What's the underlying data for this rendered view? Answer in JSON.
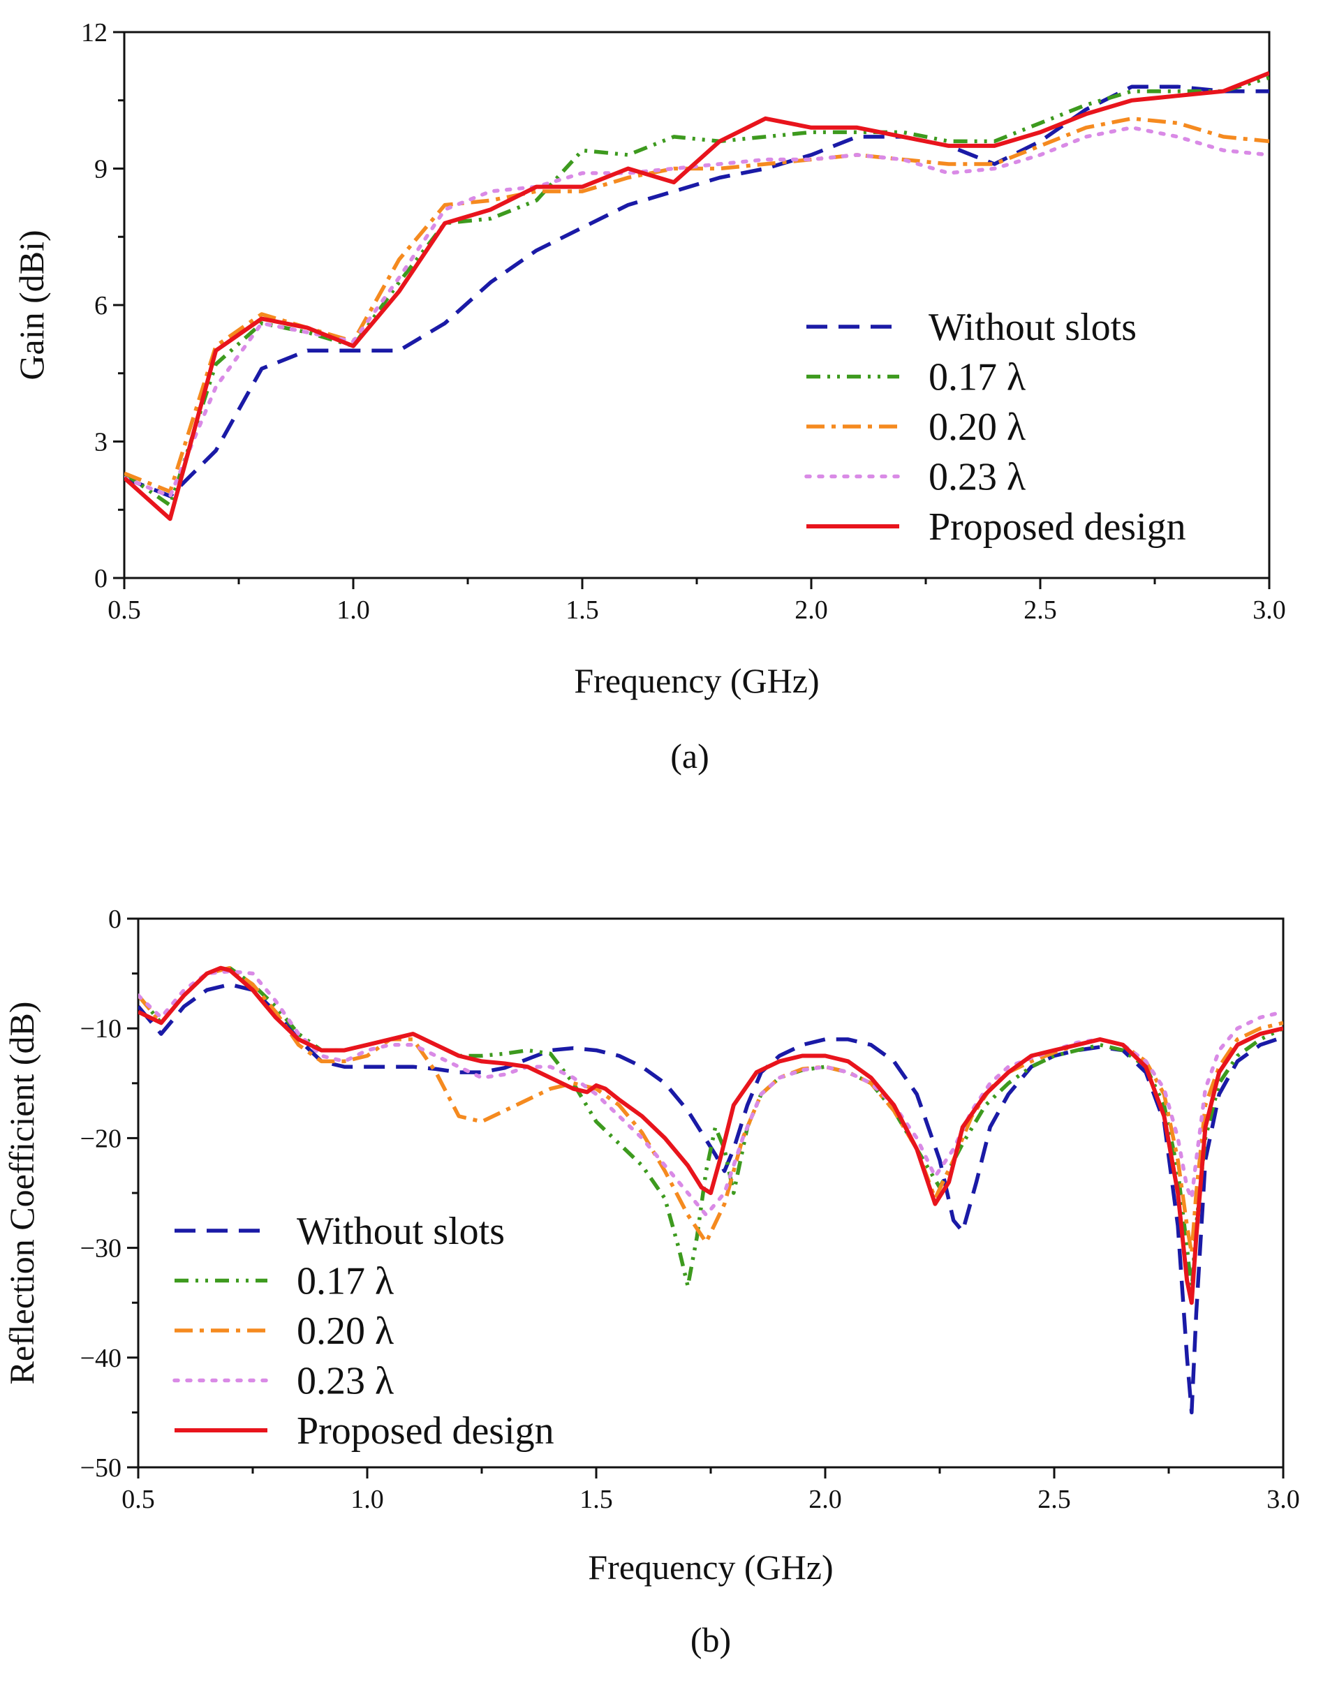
{
  "chart_data": [
    {
      "panel_label": "(a)",
      "type": "line",
      "title": "",
      "xlabel": "Frequency (GHz)",
      "ylabel": "Gain (dBi)",
      "xlim": [
        0.5,
        3.0
      ],
      "ylim": [
        0,
        12
      ],
      "xticks": [
        0.5,
        1.0,
        1.5,
        2.0,
        2.5,
        3.0
      ],
      "xtick_labels": [
        "0.5",
        "1.0",
        "1.5",
        "2.0",
        "2.5",
        "3.0"
      ],
      "yticks": [
        0,
        3,
        6,
        9,
        12
      ],
      "ytick_labels": [
        "0",
        "3",
        "6",
        "9",
        "12"
      ],
      "grid": false,
      "legend_position": "bottom-right",
      "series": [
        {
          "name": "Without slots",
          "color": "#1a1aa6",
          "style": "dashed",
          "x": [
            0.5,
            0.6,
            0.7,
            0.8,
            0.9,
            1.0,
            1.1,
            1.2,
            1.3,
            1.4,
            1.5,
            1.6,
            1.7,
            1.8,
            1.9,
            2.0,
            2.1,
            2.2,
            2.3,
            2.4,
            2.5,
            2.6,
            2.7,
            2.8,
            2.9,
            3.0
          ],
          "values": [
            2.2,
            1.8,
            2.8,
            4.6,
            5.0,
            5.0,
            5.0,
            5.6,
            6.5,
            7.2,
            7.7,
            8.2,
            8.5,
            8.8,
            9.0,
            9.3,
            9.7,
            9.7,
            9.5,
            9.1,
            9.6,
            10.3,
            10.8,
            10.8,
            10.7,
            10.7
          ]
        },
        {
          "name": "0.17 λ",
          "color": "#3d9a1e",
          "style": "dash-dot-dot",
          "x": [
            0.5,
            0.6,
            0.7,
            0.8,
            0.9,
            1.0,
            1.1,
            1.2,
            1.3,
            1.4,
            1.5,
            1.6,
            1.7,
            1.8,
            1.9,
            2.0,
            2.1,
            2.2,
            2.3,
            2.4,
            2.5,
            2.6,
            2.7,
            2.8,
            2.9,
            3.0
          ],
          "values": [
            2.3,
            1.6,
            4.7,
            5.6,
            5.4,
            5.1,
            6.5,
            7.8,
            7.9,
            8.3,
            9.4,
            9.3,
            9.7,
            9.6,
            9.7,
            9.8,
            9.8,
            9.8,
            9.6,
            9.6,
            10.0,
            10.4,
            10.7,
            10.7,
            10.7,
            11.0
          ]
        },
        {
          "name": "0.20 λ",
          "color": "#f58a1f",
          "style": "dash-dot",
          "x": [
            0.5,
            0.6,
            0.7,
            0.8,
            0.9,
            1.0,
            1.1,
            1.2,
            1.3,
            1.4,
            1.5,
            1.6,
            1.7,
            1.8,
            1.9,
            2.0,
            2.1,
            2.2,
            2.3,
            2.4,
            2.5,
            2.6,
            2.7,
            2.8,
            2.9,
            3.0
          ],
          "values": [
            2.3,
            1.9,
            5.1,
            5.8,
            5.5,
            5.2,
            7.0,
            8.2,
            8.3,
            8.5,
            8.5,
            8.8,
            9.0,
            9.0,
            9.1,
            9.2,
            9.3,
            9.2,
            9.1,
            9.1,
            9.5,
            9.9,
            10.1,
            10.0,
            9.7,
            9.6
          ]
        },
        {
          "name": "0.23 λ",
          "color": "#d98ae6",
          "style": "dotted",
          "x": [
            0.5,
            0.6,
            0.7,
            0.8,
            0.9,
            1.0,
            1.1,
            1.2,
            1.3,
            1.4,
            1.5,
            1.6,
            1.7,
            1.8,
            1.9,
            2.0,
            2.1,
            2.2,
            2.3,
            2.4,
            2.5,
            2.6,
            2.7,
            2.8,
            2.9,
            3.0
          ],
          "values": [
            2.2,
            1.8,
            4.2,
            5.6,
            5.4,
            5.2,
            6.6,
            8.1,
            8.5,
            8.6,
            8.9,
            8.9,
            9.0,
            9.1,
            9.2,
            9.2,
            9.3,
            9.2,
            8.9,
            9.0,
            9.3,
            9.7,
            9.9,
            9.7,
            9.4,
            9.3
          ]
        },
        {
          "name": "Proposed design",
          "color": "#e8141c",
          "style": "solid",
          "x": [
            0.5,
            0.6,
            0.7,
            0.8,
            0.9,
            1.0,
            1.1,
            1.2,
            1.3,
            1.4,
            1.5,
            1.6,
            1.7,
            1.8,
            1.9,
            2.0,
            2.1,
            2.2,
            2.3,
            2.4,
            2.5,
            2.6,
            2.7,
            2.8,
            2.9,
            3.0
          ],
          "values": [
            2.2,
            1.3,
            5.0,
            5.7,
            5.5,
            5.1,
            6.3,
            7.8,
            8.1,
            8.6,
            8.6,
            9.0,
            8.7,
            9.6,
            10.1,
            9.9,
            9.9,
            9.7,
            9.5,
            9.5,
            9.8,
            10.2,
            10.5,
            10.6,
            10.7,
            11.1
          ]
        }
      ]
    },
    {
      "panel_label": "(b)",
      "type": "line",
      "title": "",
      "xlabel": "Frequency (GHz)",
      "ylabel": "Reflection Coefficient (dB)",
      "xlim": [
        0.5,
        3.0
      ],
      "ylim": [
        -50,
        0
      ],
      "xticks": [
        0.5,
        1.0,
        1.5,
        2.0,
        2.5,
        3.0
      ],
      "xtick_labels": [
        "0.5",
        "1.0",
        "1.5",
        "2.0",
        "2.5",
        "3.0"
      ],
      "yticks": [
        0,
        -10,
        -20,
        -30,
        -40,
        -50
      ],
      "ytick_labels": [
        "0",
        "−10",
        "−20",
        "−30",
        "−40",
        "−50"
      ],
      "grid": false,
      "legend_position": "bottom-left",
      "series": [
        {
          "name": "Without slots",
          "color": "#1a1aa6",
          "style": "dashed",
          "x": [
            0.5,
            0.55,
            0.6,
            0.65,
            0.7,
            0.75,
            0.8,
            0.85,
            0.9,
            0.95,
            1.0,
            1.05,
            1.1,
            1.15,
            1.2,
            1.25,
            1.3,
            1.35,
            1.4,
            1.45,
            1.5,
            1.55,
            1.6,
            1.65,
            1.7,
            1.73,
            1.76,
            1.78,
            1.8,
            1.83,
            1.86,
            1.9,
            1.95,
            2.0,
            2.05,
            2.1,
            2.15,
            2.2,
            2.25,
            2.28,
            2.3,
            2.33,
            2.36,
            2.4,
            2.45,
            2.5,
            2.55,
            2.6,
            2.65,
            2.7,
            2.74,
            2.77,
            2.79,
            2.8,
            2.81,
            2.83,
            2.86,
            2.9,
            2.95,
            3.0
          ],
          "values": [
            -8.0,
            -10.5,
            -8.0,
            -6.5,
            -6.0,
            -6.5,
            -8.5,
            -11.0,
            -13.0,
            -13.5,
            -13.5,
            -13.5,
            -13.5,
            -13.7,
            -14.0,
            -14.0,
            -13.6,
            -12.8,
            -12.0,
            -11.8,
            -12.0,
            -12.5,
            -13.5,
            -15.0,
            -17.5,
            -19.5,
            -21.5,
            -23.0,
            -21.0,
            -17.0,
            -14.0,
            -12.5,
            -11.5,
            -11.0,
            -11.0,
            -11.5,
            -13.0,
            -16.0,
            -22.0,
            -27.5,
            -28.5,
            -24.0,
            -19.0,
            -16.0,
            -13.5,
            -12.5,
            -12.0,
            -11.7,
            -12.0,
            -14.0,
            -18.5,
            -28.0,
            -40.0,
            -45.0,
            -36.0,
            -22.0,
            -16.0,
            -13.0,
            -11.5,
            -10.8
          ]
        },
        {
          "name": "0.17 λ",
          "color": "#3d9a1e",
          "style": "dash-dot-dot",
          "x": [
            0.5,
            0.55,
            0.6,
            0.65,
            0.7,
            0.75,
            0.8,
            0.85,
            0.9,
            0.95,
            1.0,
            1.05,
            1.1,
            1.15,
            1.2,
            1.25,
            1.3,
            1.35,
            1.4,
            1.45,
            1.5,
            1.55,
            1.6,
            1.65,
            1.68,
            1.7,
            1.72,
            1.74,
            1.76,
            1.78,
            1.8,
            1.83,
            1.86,
            1.9,
            1.95,
            2.0,
            2.05,
            2.1,
            2.15,
            2.2,
            2.25,
            2.3,
            2.35,
            2.4,
            2.45,
            2.5,
            2.55,
            2.6,
            2.65,
            2.7,
            2.74,
            2.77,
            2.79,
            2.8,
            2.81,
            2.83,
            2.86,
            2.9,
            2.95,
            3.0
          ],
          "values": [
            -7.0,
            -9.5,
            -7.0,
            -5.0,
            -4.5,
            -6.0,
            -8.0,
            -10.5,
            -12.0,
            -12.0,
            -11.5,
            -11.0,
            -10.5,
            -11.5,
            -12.5,
            -12.5,
            -12.3,
            -12.0,
            -12.3,
            -15.0,
            -18.5,
            -20.5,
            -22.5,
            -25.5,
            -30.0,
            -33.5,
            -29.0,
            -23.0,
            -19.0,
            -21.0,
            -25.0,
            -19.0,
            -16.0,
            -14.5,
            -13.8,
            -13.5,
            -14.0,
            -15.0,
            -17.5,
            -21.0,
            -24.5,
            -20.5,
            -17.0,
            -15.0,
            -13.5,
            -12.5,
            -12.0,
            -11.5,
            -12.0,
            -13.5,
            -17.0,
            -23.0,
            -30.0,
            -34.0,
            -28.0,
            -20.0,
            -15.0,
            -12.5,
            -11.0,
            -10.0
          ]
        },
        {
          "name": "0.20 λ",
          "color": "#f58a1f",
          "style": "dash-dot",
          "x": [
            0.5,
            0.55,
            0.6,
            0.65,
            0.7,
            0.75,
            0.8,
            0.85,
            0.9,
            0.95,
            1.0,
            1.05,
            1.1,
            1.15,
            1.2,
            1.25,
            1.3,
            1.35,
            1.4,
            1.45,
            1.5,
            1.55,
            1.6,
            1.65,
            1.7,
            1.74,
            1.78,
            1.82,
            1.86,
            1.9,
            1.95,
            2.0,
            2.05,
            2.1,
            2.15,
            2.2,
            2.24,
            2.28,
            2.32,
            2.36,
            2.4,
            2.45,
            2.5,
            2.55,
            2.6,
            2.65,
            2.7,
            2.74,
            2.77,
            2.79,
            2.8,
            2.81,
            2.83,
            2.86,
            2.9,
            2.95,
            3.0
          ],
          "values": [
            -7.0,
            -9.5,
            -7.0,
            -5.0,
            -4.5,
            -6.0,
            -8.5,
            -11.5,
            -13.0,
            -13.0,
            -12.5,
            -11.0,
            -11.0,
            -14.0,
            -18.0,
            -18.5,
            -17.5,
            -16.5,
            -15.5,
            -15.0,
            -15.5,
            -17.0,
            -19.5,
            -23.0,
            -27.0,
            -29.5,
            -26.0,
            -20.0,
            -16.0,
            -14.5,
            -13.7,
            -13.5,
            -14.0,
            -15.0,
            -17.5,
            -21.0,
            -25.5,
            -22.0,
            -18.0,
            -15.5,
            -14.0,
            -13.0,
            -12.2,
            -11.5,
            -11.0,
            -11.5,
            -13.0,
            -16.0,
            -22.0,
            -28.0,
            -30.5,
            -25.0,
            -17.0,
            -13.5,
            -11.0,
            -10.0,
            -9.5
          ]
        },
        {
          "name": "0.23 λ",
          "color": "#d98ae6",
          "style": "dotted",
          "x": [
            0.5,
            0.55,
            0.6,
            0.65,
            0.7,
            0.75,
            0.8,
            0.85,
            0.9,
            0.95,
            1.0,
            1.05,
            1.1,
            1.15,
            1.2,
            1.25,
            1.3,
            1.35,
            1.4,
            1.45,
            1.5,
            1.55,
            1.6,
            1.65,
            1.7,
            1.74,
            1.78,
            1.82,
            1.86,
            1.9,
            1.95,
            2.0,
            2.05,
            2.1,
            2.15,
            2.2,
            2.24,
            2.28,
            2.32,
            2.36,
            2.4,
            2.45,
            2.5,
            2.55,
            2.6,
            2.65,
            2.7,
            2.74,
            2.77,
            2.79,
            2.8,
            2.81,
            2.83,
            2.86,
            2.9,
            2.95,
            3.0
          ],
          "values": [
            -7.0,
            -9.0,
            -6.5,
            -5.0,
            -4.8,
            -5.0,
            -7.5,
            -10.5,
            -12.5,
            -13.0,
            -12.0,
            -11.5,
            -11.5,
            -12.5,
            -13.5,
            -14.5,
            -14.2,
            -13.5,
            -13.5,
            -14.5,
            -16.0,
            -18.0,
            -20.0,
            -22.5,
            -25.0,
            -27.0,
            -25.0,
            -20.0,
            -16.0,
            -14.5,
            -13.8,
            -13.5,
            -14.0,
            -15.0,
            -17.0,
            -20.0,
            -23.5,
            -21.0,
            -17.5,
            -15.0,
            -13.5,
            -12.7,
            -12.0,
            -11.3,
            -11.0,
            -11.5,
            -13.0,
            -15.5,
            -20.0,
            -24.5,
            -25.5,
            -22.0,
            -15.5,
            -12.0,
            -10.0,
            -9.0,
            -8.5
          ]
        },
        {
          "name": "Proposed design",
          "color": "#e8141c",
          "style": "solid",
          "x": [
            0.5,
            0.55,
            0.6,
            0.65,
            0.68,
            0.7,
            0.75,
            0.8,
            0.85,
            0.9,
            0.95,
            1.0,
            1.05,
            1.1,
            1.15,
            1.2,
            1.25,
            1.3,
            1.35,
            1.4,
            1.45,
            1.48,
            1.5,
            1.52,
            1.55,
            1.6,
            1.65,
            1.7,
            1.73,
            1.75,
            1.77,
            1.8,
            1.85,
            1.9,
            1.95,
            2.0,
            2.05,
            2.1,
            2.15,
            2.2,
            2.24,
            2.27,
            2.3,
            2.35,
            2.4,
            2.45,
            2.5,
            2.55,
            2.6,
            2.65,
            2.7,
            2.74,
            2.77,
            2.79,
            2.8,
            2.81,
            2.83,
            2.86,
            2.9,
            2.95,
            3.0
          ],
          "values": [
            -8.5,
            -9.5,
            -7.0,
            -5.0,
            -4.5,
            -4.7,
            -6.5,
            -9.0,
            -11.0,
            -12.0,
            -12.0,
            -11.5,
            -11.0,
            -10.5,
            -11.5,
            -12.5,
            -13.0,
            -13.2,
            -13.5,
            -14.5,
            -15.5,
            -15.8,
            -15.2,
            -15.5,
            -16.5,
            -18.0,
            -20.0,
            -22.5,
            -24.5,
            -25.0,
            -22.0,
            -17.0,
            -14.0,
            -13.0,
            -12.5,
            -12.5,
            -13.0,
            -14.5,
            -17.0,
            -21.0,
            -26.0,
            -24.0,
            -19.0,
            -16.0,
            -14.0,
            -12.5,
            -12.0,
            -11.5,
            -11.0,
            -11.5,
            -13.5,
            -18.0,
            -25.0,
            -33.0,
            -35.0,
            -29.0,
            -19.0,
            -14.0,
            -11.5,
            -10.5,
            -10.0
          ]
        }
      ]
    }
  ]
}
